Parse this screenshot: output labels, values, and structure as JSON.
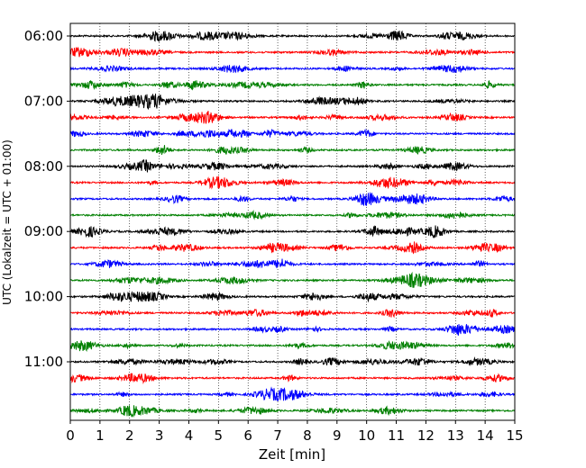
{
  "chart_data": {
    "type": "line",
    "subtype": "helicorder",
    "xlabel": "Zeit  [min]",
    "ylabel": "UTC (Lokalzeit = UTC + 01:00)",
    "xlim": [
      0,
      15
    ],
    "x_ticks": [
      "0",
      "1",
      "2",
      "3",
      "4",
      "5",
      "6",
      "7",
      "8",
      "9",
      "10",
      "11",
      "12",
      "13",
      "14",
      "15"
    ],
    "y_ticks": [
      "06:00",
      "07:00",
      "08:00",
      "09:00",
      "10:00",
      "11:00"
    ],
    "trace_start_times": [
      "06:00",
      "06:15",
      "06:30",
      "06:45",
      "07:00",
      "07:15",
      "07:30",
      "07:45",
      "08:00",
      "08:15",
      "08:30",
      "08:45",
      "09:00",
      "09:15",
      "09:30",
      "09:45",
      "10:00",
      "10:15",
      "10:30",
      "10:45",
      "11:00",
      "11:15",
      "11:30",
      "11:45"
    ],
    "trace_colors": [
      "#000000",
      "#ff0000",
      "#0000ff",
      "#008000"
    ],
    "minutes_per_trace": 15,
    "grid": "vertical dotted lines at each minute",
    "legend": "none"
  }
}
